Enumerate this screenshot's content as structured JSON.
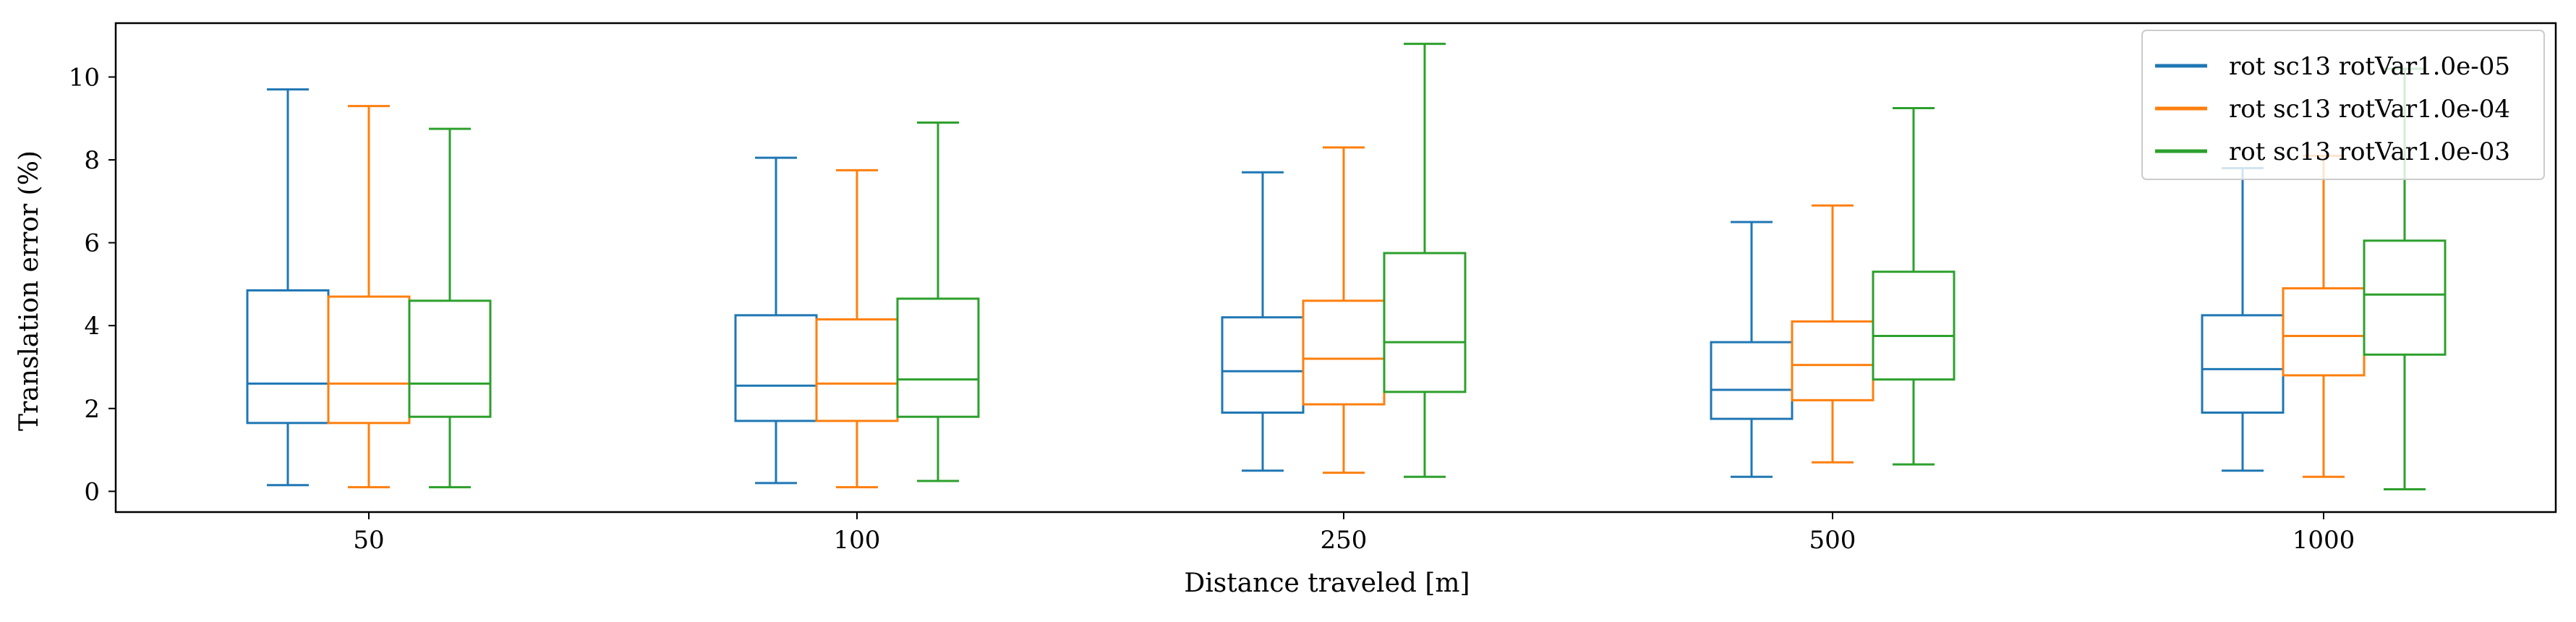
{
  "chart_data": {
    "type": "box",
    "categories": [
      "50",
      "100",
      "250",
      "500",
      "1000"
    ],
    "xlabel": "Distance traveled [m]",
    "ylabel": "Translation error (%)",
    "ylim": [
      -0.5,
      11.3
    ],
    "yticks": [
      0,
      2,
      4,
      6,
      8,
      10
    ],
    "grid": false,
    "legend_position": "top-right",
    "series": [
      {
        "name": "rot sc13 rotVar1.0e-05",
        "color": "#1f77b4",
        "boxes": [
          {
            "whisker_low": 0.15,
            "q1": 1.65,
            "median": 2.6,
            "q3": 4.85,
            "whisker_high": 9.7
          },
          {
            "whisker_low": 0.2,
            "q1": 1.7,
            "median": 2.55,
            "q3": 4.25,
            "whisker_high": 8.05
          },
          {
            "whisker_low": 0.5,
            "q1": 1.9,
            "median": 2.9,
            "q3": 4.2,
            "whisker_high": 7.7
          },
          {
            "whisker_low": 0.35,
            "q1": 1.75,
            "median": 2.45,
            "q3": 3.6,
            "whisker_high": 6.5
          },
          {
            "whisker_low": 0.5,
            "q1": 1.9,
            "median": 2.95,
            "q3": 4.25,
            "whisker_high": 7.8
          }
        ]
      },
      {
        "name": "rot sc13 rotVar1.0e-04",
        "color": "#ff7f0e",
        "boxes": [
          {
            "whisker_low": 0.1,
            "q1": 1.65,
            "median": 2.6,
            "q3": 4.7,
            "whisker_high": 9.3
          },
          {
            "whisker_low": 0.1,
            "q1": 1.7,
            "median": 2.6,
            "q3": 4.15,
            "whisker_high": 7.75
          },
          {
            "whisker_low": 0.45,
            "q1": 2.1,
            "median": 3.2,
            "q3": 4.6,
            "whisker_high": 8.3
          },
          {
            "whisker_low": 0.7,
            "q1": 2.2,
            "median": 3.05,
            "q3": 4.1,
            "whisker_high": 6.9
          },
          {
            "whisker_low": 0.35,
            "q1": 2.8,
            "median": 3.75,
            "q3": 4.9,
            "whisker_high": 8.1
          }
        ]
      },
      {
        "name": "rot sc13 rotVar1.0e-03",
        "color": "#2ca02c",
        "boxes": [
          {
            "whisker_low": 0.1,
            "q1": 1.8,
            "median": 2.6,
            "q3": 4.6,
            "whisker_high": 8.75
          },
          {
            "whisker_low": 0.25,
            "q1": 1.8,
            "median": 2.7,
            "q3": 4.65,
            "whisker_high": 8.9
          },
          {
            "whisker_low": 0.35,
            "q1": 2.4,
            "median": 3.6,
            "q3": 5.75,
            "whisker_high": 10.8
          },
          {
            "whisker_low": 0.65,
            "q1": 2.7,
            "median": 3.75,
            "q3": 5.3,
            "whisker_high": 9.25
          },
          {
            "whisker_low": 0.05,
            "q1": 3.3,
            "median": 4.75,
            "q3": 6.05,
            "whisker_high": 10.2
          }
        ]
      }
    ]
  }
}
